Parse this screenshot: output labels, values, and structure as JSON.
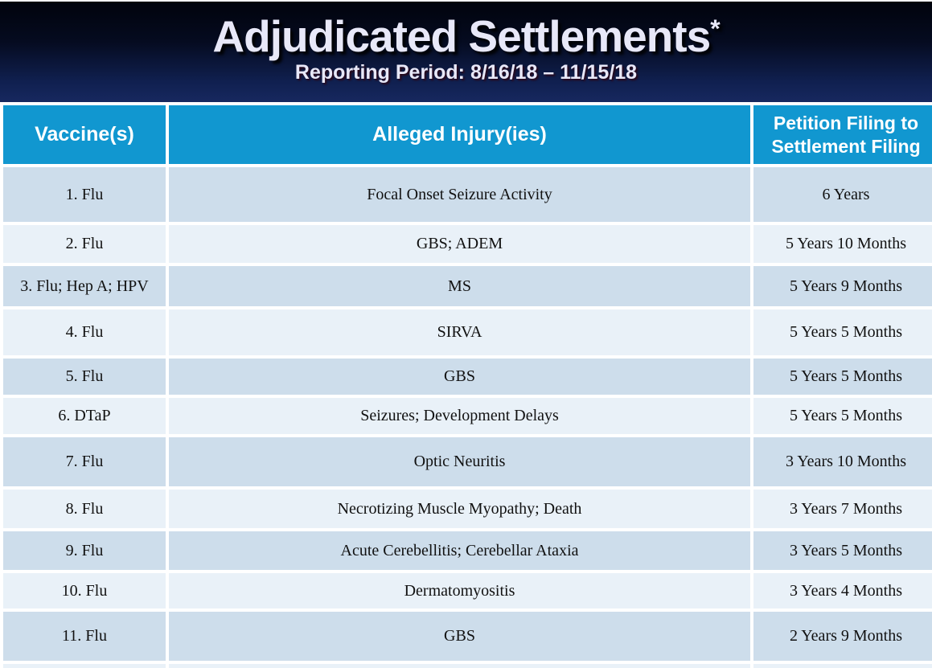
{
  "header": {
    "title": "Adjudicated Settlements",
    "title_asterisk": "*",
    "subtitle": "Reporting Period: 8/16/18 – 11/15/18"
  },
  "table": {
    "columns": [
      "Vaccine(s)",
      "Alleged Injury(ies)",
      "Petition Filing to Settlement Filing"
    ],
    "rows": [
      {
        "vaccine": "1. Flu",
        "injury": "Focal Onset Seizure Activity",
        "duration": "6 Years"
      },
      {
        "vaccine": "2. Flu",
        "injury": "GBS; ADEM",
        "duration": "5 Years 10 Months"
      },
      {
        "vaccine": "3. Flu; Hep A; HPV",
        "injury": "MS",
        "duration": "5 Years 9 Months"
      },
      {
        "vaccine": "4. Flu",
        "injury": "SIRVA",
        "duration": "5 Years 5 Months"
      },
      {
        "vaccine": "5. Flu",
        "injury": "GBS",
        "duration": "5 Years 5 Months"
      },
      {
        "vaccine": "6. DTaP",
        "injury": "Seizures; Development Delays",
        "duration": "5 Years 5 Months"
      },
      {
        "vaccine": "7. Flu",
        "injury": "Optic Neuritis",
        "duration": "3 Years 10 Months"
      },
      {
        "vaccine": "8. Flu",
        "injury": "Necrotizing Muscle Myopathy; Death",
        "duration": "3 Years 7 Months"
      },
      {
        "vaccine": "9. Flu",
        "injury": "Acute Cerebellitis; Cerebellar Ataxia",
        "duration": "3 Years 5 Months"
      },
      {
        "vaccine": "10. Flu",
        "injury": "Dermatomyositis",
        "duration": "3 Years 4 Months"
      },
      {
        "vaccine": "11. Flu",
        "injury": "GBS",
        "duration": "2 Years 9 Months"
      },
      {
        "vaccine": "",
        "injury": "",
        "duration": ""
      }
    ]
  },
  "colors": {
    "table_header_bg": "#1197d0",
    "row_alt_dark": "#cdddeb",
    "row_alt_light": "#e9f1f8",
    "banner_gradient_top": "#01030c",
    "banner_gradient_bottom": "#17285f",
    "title_text": "#e8e8f8"
  }
}
